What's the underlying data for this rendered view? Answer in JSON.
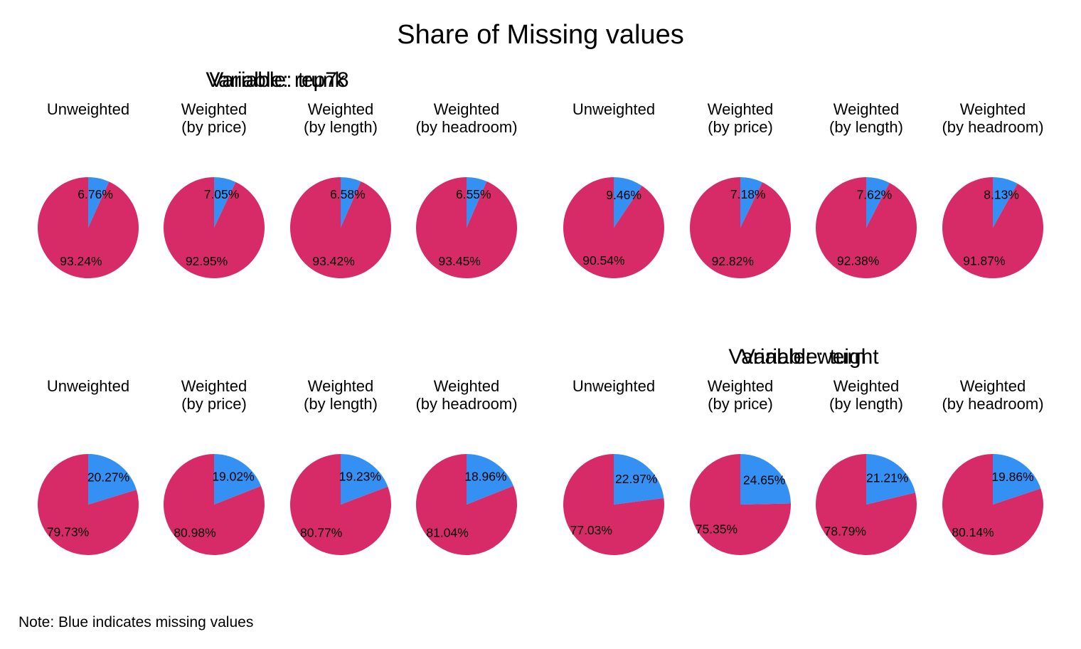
{
  "title": "Share of Missing values",
  "note": "Note: Blue indicates missing values",
  "colors": {
    "missing": "#3590F3",
    "present": "#D62B67"
  },
  "chart_data": {
    "type": "pie",
    "title": "Share of Missing values",
    "note": "Note: Blue indicates missing values",
    "groups": [
      {
        "title": "Variable: rep78",
        "pies": [
          {
            "label": [
              "Unweighted"
            ],
            "missing": 6.76,
            "present": 93.24,
            "missing_label": "6.76%",
            "present_label": "93.24%"
          },
          {
            "label": [
              "Weighted",
              "(by price)"
            ],
            "missing": 7.05,
            "present": 92.95,
            "missing_label": "7.05%",
            "present_label": "92.95%"
          },
          {
            "label": [
              "Weighted",
              "(by length)"
            ],
            "missing": 6.58,
            "present": 93.42,
            "missing_label": "6.58%",
            "present_label": "93.42%"
          },
          {
            "label": [
              "Weighted",
              "(by headroom)"
            ],
            "missing": 6.55,
            "present": 93.45,
            "missing_label": "6.55%",
            "present_label": "93.45%"
          }
        ]
      },
      {
        "title": "Variable: weight",
        "pies": [
          {
            "label": [
              "Unweighted"
            ],
            "missing": 9.46,
            "present": 90.54,
            "missing_label": "9.46%",
            "present_label": "90.54%"
          },
          {
            "label": [
              "Weighted",
              "(by price)"
            ],
            "missing": 7.18,
            "present": 92.82,
            "missing_label": "7.18%",
            "present_label": "92.82%"
          },
          {
            "label": [
              "Weighted",
              "(by length)"
            ],
            "missing": 7.62,
            "present": 92.38,
            "missing_label": "7.62%",
            "present_label": "92.38%"
          },
          {
            "label": [
              "Weighted",
              "(by headroom)"
            ],
            "missing": 8.13,
            "present": 91.87,
            "missing_label": "8.13%",
            "present_label": "91.87%"
          }
        ]
      },
      {
        "title": "Variable: trunk",
        "pies": [
          {
            "label": [
              "Unweighted"
            ],
            "missing": 20.27,
            "present": 79.73,
            "missing_label": "20.27%",
            "present_label": "79.73%"
          },
          {
            "label": [
              "Weighted",
              "(by price)"
            ],
            "missing": 19.02,
            "present": 80.98,
            "missing_label": "19.02%",
            "present_label": "80.98%"
          },
          {
            "label": [
              "Weighted",
              "(by length)"
            ],
            "missing": 19.23,
            "present": 80.77,
            "missing_label": "19.23%",
            "present_label": "80.77%"
          },
          {
            "label": [
              "Weighted",
              "(by headroom)"
            ],
            "missing": 18.96,
            "present": 81.04,
            "missing_label": "18.96%",
            "present_label": "81.04%"
          }
        ]
      },
      {
        "title": "Variable: turn",
        "pies": [
          {
            "label": [
              "Unweighted"
            ],
            "missing": 22.97,
            "present": 77.03,
            "missing_label": "22.97%",
            "present_label": "77.03%"
          },
          {
            "label": [
              "Weighted",
              "(by price)"
            ],
            "missing": 24.65,
            "present": 75.35,
            "missing_label": "24.65%",
            "present_label": "75.35%"
          },
          {
            "label": [
              "Weighted",
              "(by length)"
            ],
            "missing": 21.21,
            "present": 78.79,
            "missing_label": "21.21%",
            "present_label": "78.79%"
          },
          {
            "label": [
              "Weighted",
              "(by headroom)"
            ],
            "missing": 19.86,
            "present": 80.14,
            "missing_label": "19.86%",
            "present_label": "80.14%"
          }
        ]
      }
    ]
  }
}
